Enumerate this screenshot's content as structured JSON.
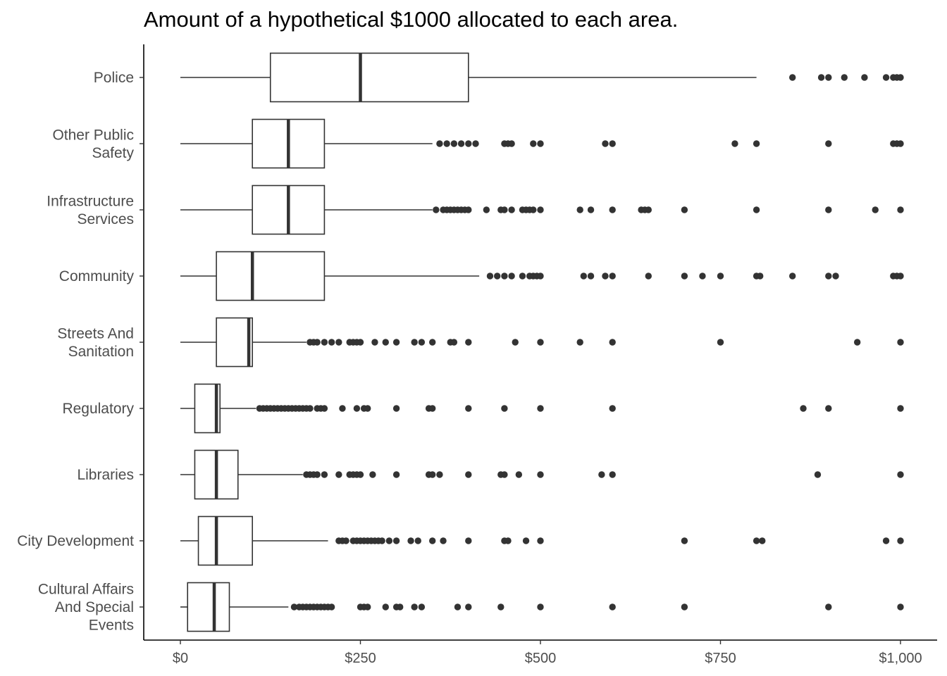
{
  "chart_data": {
    "type": "boxplot",
    "orientation": "horizontal",
    "title": "Amount of a hypothetical $1000 allocated to each area.",
    "xlabel": "",
    "ylabel": "",
    "xlim": [
      -50,
      1045
    ],
    "x_ticks": [
      0,
      250,
      500,
      750,
      1000
    ],
    "x_tick_labels": [
      "$0",
      "$250",
      "$500",
      "$750",
      "$1,000"
    ],
    "grid": false,
    "legend": "none",
    "colors": {
      "box_line": "#333333",
      "point": "#333333",
      "axis": "#000000"
    },
    "categories": [
      {
        "label": [
          "Police"
        ],
        "min": 0,
        "q1": 125,
        "median": 250,
        "q3": 400,
        "max": 800,
        "outliers": [
          850,
          890,
          900,
          922,
          950,
          980,
          990,
          995,
          1000
        ]
      },
      {
        "label": [
          "Other Public",
          "Safety"
        ],
        "min": 0,
        "q1": 100,
        "median": 150,
        "q3": 200,
        "max": 350,
        "outliers": [
          360,
          370,
          380,
          390,
          400,
          410,
          450,
          455,
          460,
          490,
          500,
          590,
          600,
          770,
          800,
          900,
          990,
          995,
          1000
        ]
      },
      {
        "label": [
          "Infrastructure",
          "Services"
        ],
        "min": 0,
        "q1": 100,
        "median": 150,
        "q3": 200,
        "max": 350,
        "outliers": [
          355,
          365,
          370,
          375,
          380,
          385,
          390,
          395,
          400,
          425,
          445,
          450,
          460,
          475,
          480,
          485,
          490,
          500,
          555,
          570,
          600,
          640,
          645,
          650,
          700,
          800,
          900,
          965,
          1000
        ]
      },
      {
        "label": [
          "Community"
        ],
        "min": 0,
        "q1": 50,
        "median": 100,
        "q3": 200,
        "max": 415,
        "outliers": [
          430,
          440,
          450,
          460,
          475,
          485,
          490,
          495,
          500,
          560,
          570,
          590,
          600,
          650,
          700,
          725,
          750,
          800,
          805,
          850,
          900,
          910,
          990,
          995,
          1000
        ]
      },
      {
        "label": [
          "Streets And",
          "Sanitation"
        ],
        "min": 0,
        "q1": 50,
        "median": 95,
        "q3": 100,
        "max": 175,
        "outliers": [
          180,
          185,
          190,
          200,
          210,
          220,
          235,
          240,
          245,
          250,
          270,
          285,
          300,
          325,
          335,
          350,
          375,
          380,
          400,
          465,
          500,
          555,
          600,
          750,
          940,
          1000
        ]
      },
      {
        "label": [
          "Regulatory"
        ],
        "min": 0,
        "q1": 20,
        "median": 50,
        "q3": 55,
        "max": 105,
        "outliers": [
          110,
          115,
          120,
          125,
          130,
          135,
          140,
          145,
          150,
          155,
          160,
          165,
          170,
          175,
          180,
          190,
          195,
          200,
          225,
          245,
          255,
          260,
          300,
          345,
          350,
          400,
          450,
          500,
          600,
          865,
          900,
          1000
        ]
      },
      {
        "label": [
          "Libraries"
        ],
        "min": 0,
        "q1": 20,
        "median": 50,
        "q3": 80,
        "max": 170,
        "outliers": [
          175,
          180,
          185,
          190,
          200,
          220,
          235,
          240,
          245,
          250,
          267,
          300,
          345,
          350,
          360,
          400,
          445,
          450,
          470,
          500,
          585,
          600,
          885,
          1000
        ]
      },
      {
        "label": [
          "City Development"
        ],
        "min": 0,
        "q1": 25,
        "median": 50,
        "q3": 100,
        "max": 205,
        "outliers": [
          220,
          225,
          230,
          240,
          245,
          250,
          255,
          260,
          265,
          270,
          275,
          280,
          290,
          300,
          320,
          330,
          350,
          365,
          400,
          450,
          455,
          480,
          500,
          700,
          800,
          808,
          980,
          1000
        ]
      },
      {
        "label": [
          "Cultural Affairs",
          "And Special",
          "Events"
        ],
        "min": 0,
        "q1": 10,
        "median": 47,
        "q3": 68,
        "max": 150,
        "outliers": [
          158,
          165,
          170,
          175,
          180,
          185,
          190,
          195,
          200,
          205,
          210,
          250,
          255,
          260,
          285,
          300,
          305,
          325,
          335,
          385,
          400,
          445,
          500,
          600,
          700,
          900,
          1000
        ]
      }
    ]
  }
}
